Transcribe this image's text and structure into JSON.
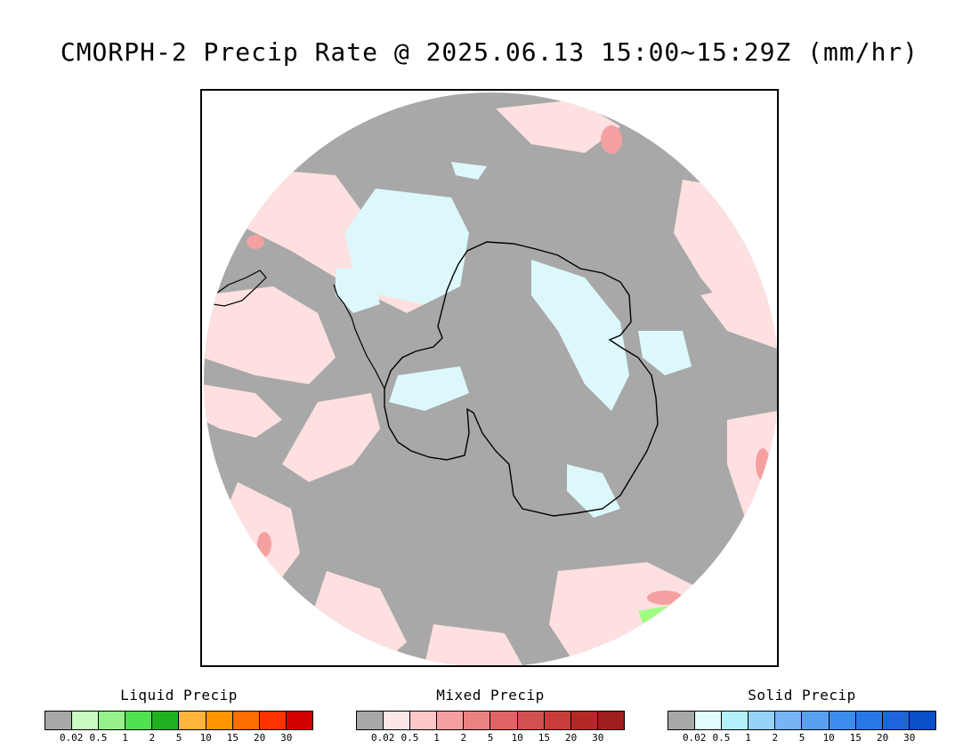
{
  "title": "CMORPH-2 Precip Rate @ 2025.06.13 15:00~15:29Z (mm/hr)",
  "map": {
    "projection": "south-polar-stereographic",
    "colors": {
      "background_no_precip": "#a8a8a8",
      "mixed_light": "#ffe0e0",
      "mixed_mid": "#f5a0a0",
      "mixed_heavy": "#e07070",
      "solid_light": "#dcf8fb",
      "liquid_light": "#a0ff80",
      "coastline": "#000000"
    }
  },
  "legends": [
    {
      "title": "Liquid Precip",
      "colors": [
        "#a8a8a8",
        "#c8fcc0",
        "#96f08c",
        "#50e050",
        "#20b020",
        "#ffb43c",
        "#ff9600",
        "#ff6e00",
        "#ff3200",
        "#d20000"
      ],
      "ticks": [
        "0.02",
        "0.5",
        "1",
        "2",
        "5",
        "10",
        "15",
        "20",
        "30"
      ]
    },
    {
      "title": "Mixed Precip",
      "colors": [
        "#a8a8a8",
        "#ffe6e6",
        "#ffc8c8",
        "#f5a0a0",
        "#eb8282",
        "#e16464",
        "#d25050",
        "#c83c3c",
        "#b42828",
        "#a01e1e"
      ],
      "ticks": [
        "0.02",
        "0.5",
        "1",
        "2",
        "5",
        "10",
        "15",
        "20",
        "30"
      ]
    },
    {
      "title": "Solid Precip",
      "colors": [
        "#a8a8a8",
        "#e0fcfc",
        "#b4f0fa",
        "#96d2fa",
        "#78b4f5",
        "#5aa0f0",
        "#3c8cf0",
        "#2878e6",
        "#1e64dc",
        "#0a50c8"
      ],
      "ticks": [
        "0.02",
        "0.5",
        "1",
        "2",
        "5",
        "10",
        "15",
        "20",
        "30"
      ]
    }
  ]
}
